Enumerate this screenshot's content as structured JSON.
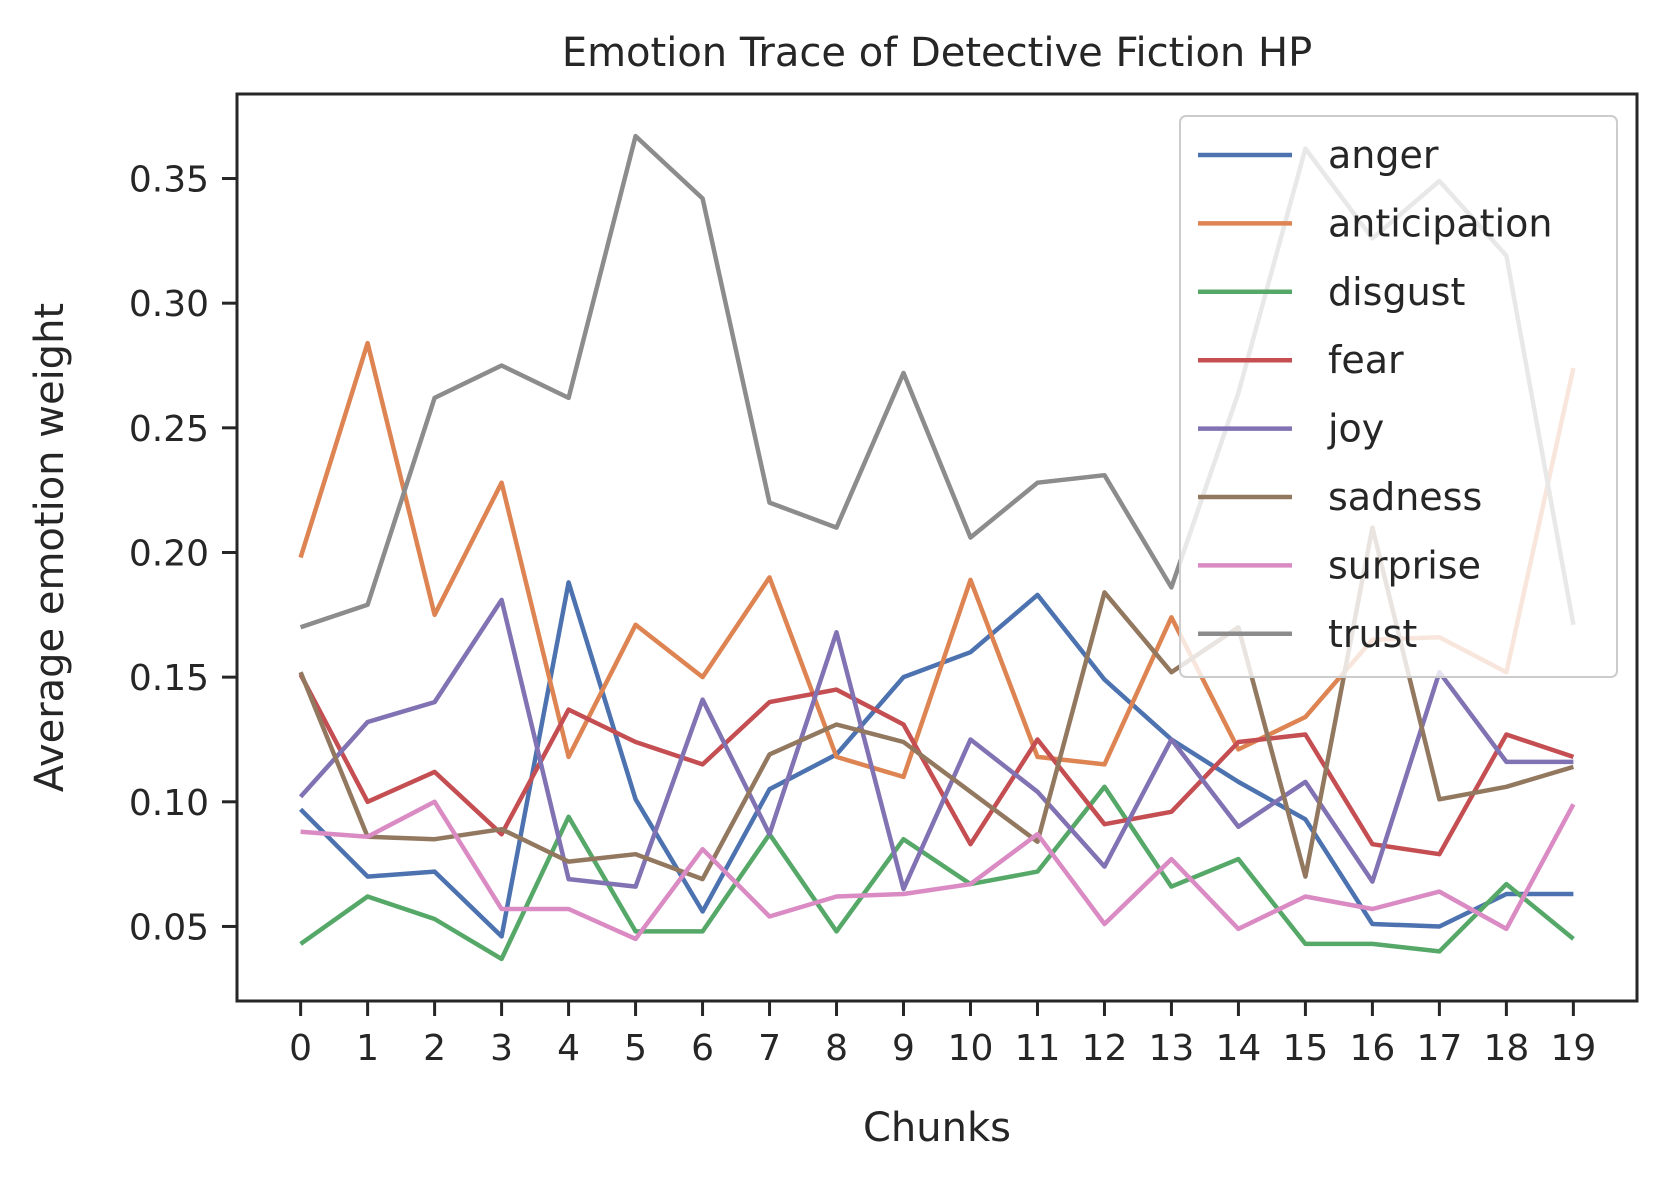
{
  "chart_data": {
    "type": "line",
    "title": "Emotion Trace of Detective Fiction HP",
    "xlabel": "Chunks",
    "ylabel": "Average emotion weight",
    "x": [
      0,
      1,
      2,
      3,
      4,
      5,
      6,
      7,
      8,
      9,
      10,
      11,
      12,
      13,
      14,
      15,
      16,
      17,
      18,
      19
    ],
    "x_tick_labels": [
      "0",
      "1",
      "2",
      "3",
      "4",
      "5",
      "6",
      "7",
      "8",
      "9",
      "10",
      "11",
      "12",
      "13",
      "14",
      "15",
      "16",
      "17",
      "18",
      "19"
    ],
    "y_ticks": [
      0.05,
      0.1,
      0.15,
      0.2,
      0.25,
      0.3,
      0.35
    ],
    "y_tick_labels": [
      "0.05",
      "0.10",
      "0.15",
      "0.20",
      "0.25",
      "0.30",
      "0.35"
    ],
    "xlim": [
      -0.95,
      19.95
    ],
    "ylim": [
      0.0201,
      0.3839
    ],
    "grid": false,
    "legend_position": "top-right",
    "series": [
      {
        "name": "anger",
        "color": "#4c72b0",
        "values": [
          0.097,
          0.07,
          0.072,
          0.046,
          0.188,
          0.101,
          0.056,
          0.105,
          0.119,
          0.15,
          0.16,
          0.183,
          0.149,
          0.125,
          0.108,
          0.093,
          0.051,
          0.05,
          0.063,
          0.063
        ]
      },
      {
        "name": "anticipation",
        "color": "#dd8452",
        "values": [
          0.198,
          0.284,
          0.175,
          0.228,
          0.118,
          0.171,
          0.15,
          0.19,
          0.118,
          0.11,
          0.189,
          0.118,
          0.115,
          0.174,
          0.121,
          0.134,
          0.165,
          0.166,
          0.152,
          0.274
        ]
      },
      {
        "name": "disgust",
        "color": "#55a868",
        "values": [
          0.043,
          0.062,
          0.053,
          0.037,
          0.094,
          0.048,
          0.048,
          0.087,
          0.048,
          0.085,
          0.067,
          0.072,
          0.106,
          0.066,
          0.077,
          0.043,
          0.043,
          0.04,
          0.067,
          0.045
        ]
      },
      {
        "name": "fear",
        "color": "#c44e52",
        "values": [
          0.151,
          0.1,
          0.112,
          0.087,
          0.137,
          0.124,
          0.115,
          0.14,
          0.145,
          0.131,
          0.083,
          0.125,
          0.091,
          0.096,
          0.124,
          0.127,
          0.083,
          0.079,
          0.127,
          0.118
        ]
      },
      {
        "name": "joy",
        "color": "#8172b3",
        "values": [
          0.102,
          0.132,
          0.14,
          0.181,
          0.069,
          0.066,
          0.141,
          0.087,
          0.168,
          0.065,
          0.125,
          0.104,
          0.074,
          0.125,
          0.09,
          0.108,
          0.068,
          0.152,
          0.116,
          0.116
        ]
      },
      {
        "name": "sadness",
        "color": "#937860",
        "values": [
          0.152,
          0.086,
          0.085,
          0.089,
          0.076,
          0.079,
          0.069,
          0.119,
          0.131,
          0.124,
          0.104,
          0.084,
          0.184,
          0.152,
          0.17,
          0.07,
          0.21,
          0.101,
          0.106,
          0.114
        ]
      },
      {
        "name": "surprise",
        "color": "#da8bc3",
        "values": [
          0.088,
          0.086,
          0.1,
          0.057,
          0.057,
          0.045,
          0.081,
          0.054,
          0.062,
          0.063,
          0.067,
          0.087,
          0.051,
          0.077,
          0.049,
          0.062,
          0.057,
          0.064,
          0.049,
          0.099
        ]
      },
      {
        "name": "trust",
        "color": "#8c8c8c",
        "values": [
          0.17,
          0.179,
          0.262,
          0.275,
          0.262,
          0.367,
          0.342,
          0.22,
          0.21,
          0.272,
          0.206,
          0.228,
          0.231,
          0.186,
          0.264,
          0.362,
          0.326,
          0.349,
          0.319,
          0.171
        ]
      }
    ]
  }
}
